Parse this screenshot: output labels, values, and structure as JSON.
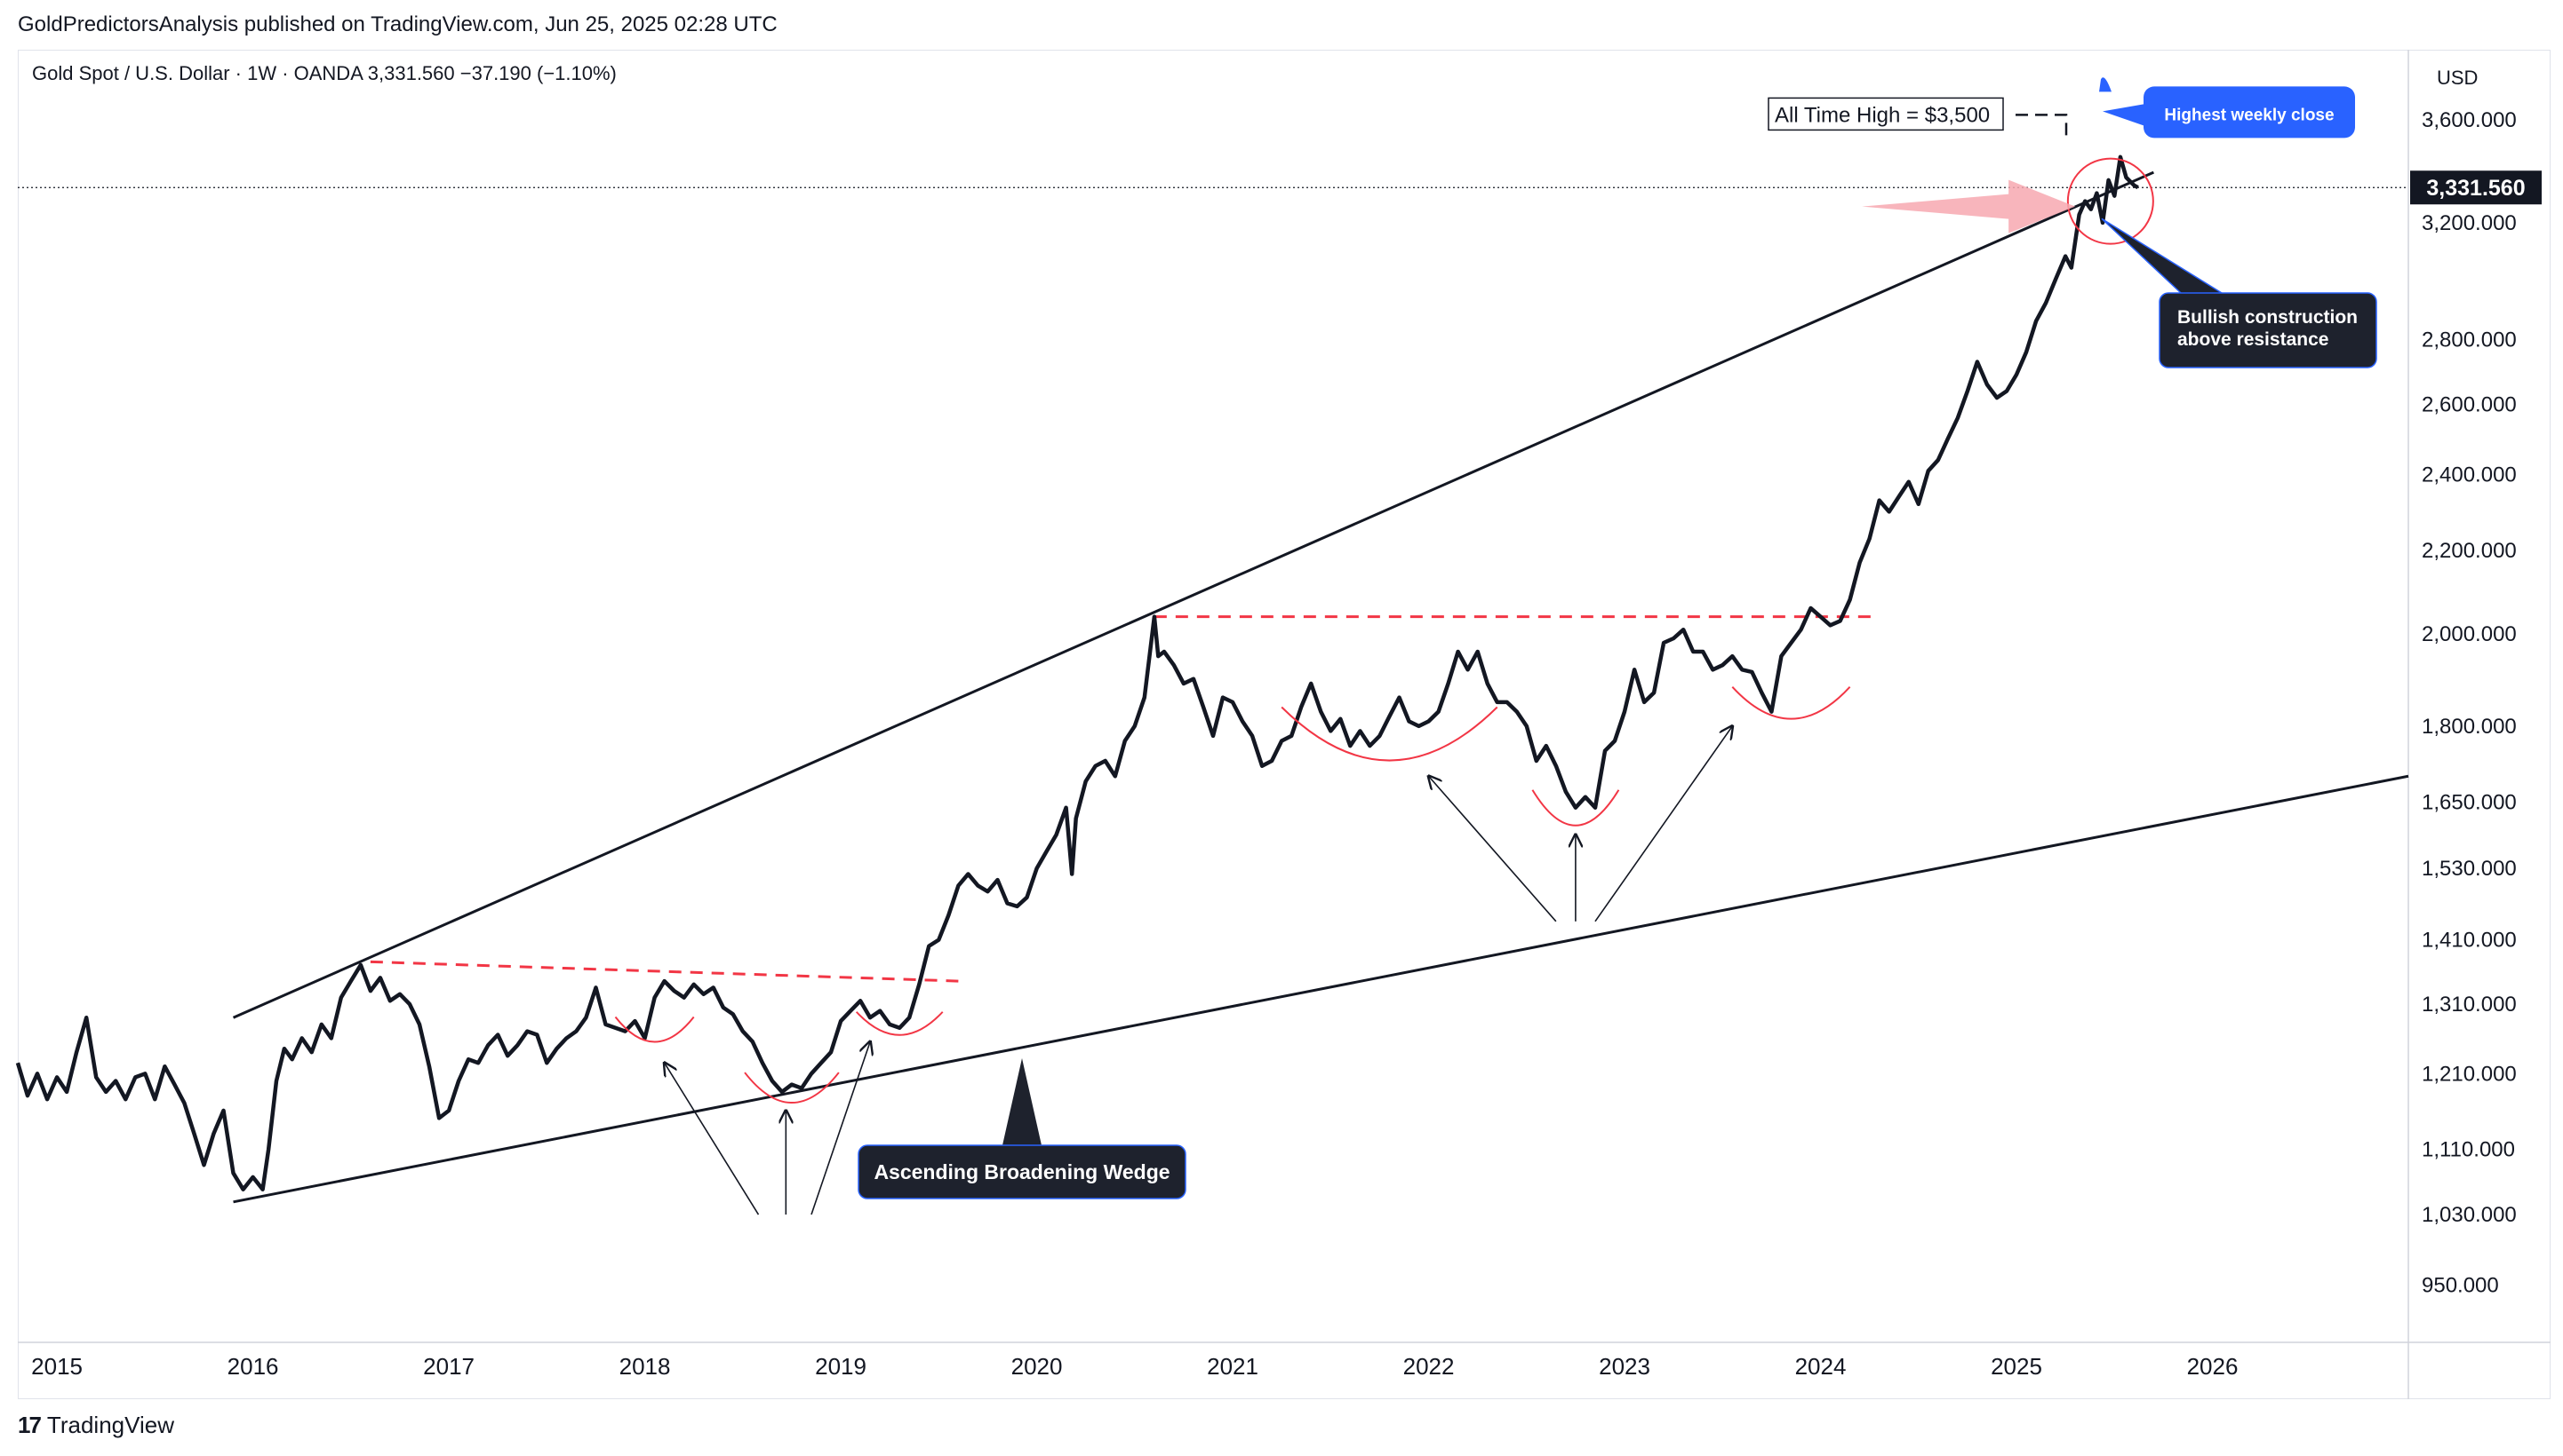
{
  "header": {
    "publish_line": "GoldPredictorsAnalysis published on TradingView.com, Jun 25, 2025 02:28 UTC",
    "symbol_line": "Gold Spot / U.S. Dollar · 1W · OANDA   3,331.560   −37.190 (−1.10%)"
  },
  "footer": {
    "brand": "TradingView",
    "logo_glyph": "17"
  },
  "colors": {
    "price": "#131722",
    "resistance_dash": "#f23645",
    "arc": "#f23645",
    "blue_callout": "#2962ff",
    "dark_callout": "#1e222d",
    "arrow_pink": "#f7a8b0"
  },
  "chart_data": {
    "type": "line",
    "title": "Gold Spot / U.S. Dollar · 1W · OANDA",
    "currency_label": "USD",
    "scale": "log",
    "ylim": [
      890,
      3900
    ],
    "xlim": [
      2014.8,
      2027.0
    ],
    "last_price_label": "3,331.560",
    "last_price": 3331.56,
    "y_ticks": [
      {
        "value": 3600,
        "label": "3,600.000"
      },
      {
        "value": 3200,
        "label": "3,200.000"
      },
      {
        "value": 2800,
        "label": "2,800.000"
      },
      {
        "value": 2600,
        "label": "2,600.000"
      },
      {
        "value": 2400,
        "label": "2,400.000"
      },
      {
        "value": 2200,
        "label": "2,200.000"
      },
      {
        "value": 2000,
        "label": "2,000.000"
      },
      {
        "value": 1800,
        "label": "1,800.000"
      },
      {
        "value": 1650,
        "label": "1,650.000"
      },
      {
        "value": 1530,
        "label": "1,530.000"
      },
      {
        "value": 1410,
        "label": "1,410.000"
      },
      {
        "value": 1310,
        "label": "1,310.000"
      },
      {
        "value": 1210,
        "label": "1,210.000"
      },
      {
        "value": 1110,
        "label": "1,110.000"
      },
      {
        "value": 1030,
        "label": "1,030.000"
      },
      {
        "value": 950,
        "label": "950.000"
      }
    ],
    "x_ticks": [
      {
        "value": 2015,
        "label": "2015"
      },
      {
        "value": 2016,
        "label": "2016"
      },
      {
        "value": 2017,
        "label": "2017"
      },
      {
        "value": 2018,
        "label": "2018"
      },
      {
        "value": 2019,
        "label": "2019"
      },
      {
        "value": 2020,
        "label": "2020"
      },
      {
        "value": 2021,
        "label": "2021"
      },
      {
        "value": 2022,
        "label": "2022"
      },
      {
        "value": 2023,
        "label": "2023"
      },
      {
        "value": 2024,
        "label": "2024"
      },
      {
        "value": 2025,
        "label": "2025"
      },
      {
        "value": 2026,
        "label": "2026"
      }
    ],
    "series": [
      {
        "points": [
          [
            2014.8,
            1225
          ],
          [
            2014.85,
            1180
          ],
          [
            2014.9,
            1210
          ],
          [
            2014.95,
            1175
          ],
          [
            2015.0,
            1205
          ],
          [
            2015.05,
            1185
          ],
          [
            2015.1,
            1240
          ],
          [
            2015.15,
            1290
          ],
          [
            2015.2,
            1205
          ],
          [
            2015.25,
            1185
          ],
          [
            2015.3,
            1200
          ],
          [
            2015.35,
            1175
          ],
          [
            2015.4,
            1205
          ],
          [
            2015.45,
            1210
          ],
          [
            2015.5,
            1175
          ],
          [
            2015.55,
            1220
          ],
          [
            2015.6,
            1195
          ],
          [
            2015.65,
            1170
          ],
          [
            2015.7,
            1130
          ],
          [
            2015.75,
            1090
          ],
          [
            2015.8,
            1130
          ],
          [
            2015.85,
            1160
          ],
          [
            2015.9,
            1080
          ],
          [
            2015.95,
            1060
          ],
          [
            2016.0,
            1075
          ],
          [
            2016.05,
            1060
          ],
          [
            2016.08,
            1110
          ],
          [
            2016.12,
            1200
          ],
          [
            2016.16,
            1245
          ],
          [
            2016.2,
            1230
          ],
          [
            2016.25,
            1260
          ],
          [
            2016.3,
            1240
          ],
          [
            2016.35,
            1280
          ],
          [
            2016.4,
            1260
          ],
          [
            2016.45,
            1320
          ],
          [
            2016.5,
            1345
          ],
          [
            2016.55,
            1370
          ],
          [
            2016.6,
            1330
          ],
          [
            2016.65,
            1350
          ],
          [
            2016.7,
            1315
          ],
          [
            2016.75,
            1325
          ],
          [
            2016.8,
            1310
          ],
          [
            2016.85,
            1280
          ],
          [
            2016.9,
            1220
          ],
          [
            2016.95,
            1150
          ],
          [
            2017.0,
            1160
          ],
          [
            2017.05,
            1200
          ],
          [
            2017.1,
            1230
          ],
          [
            2017.15,
            1225
          ],
          [
            2017.2,
            1250
          ],
          [
            2017.25,
            1265
          ],
          [
            2017.3,
            1235
          ],
          [
            2017.35,
            1250
          ],
          [
            2017.4,
            1270
          ],
          [
            2017.45,
            1265
          ],
          [
            2017.5,
            1225
          ],
          [
            2017.55,
            1245
          ],
          [
            2017.6,
            1260
          ],
          [
            2017.65,
            1270
          ],
          [
            2017.7,
            1290
          ],
          [
            2017.75,
            1335
          ],
          [
            2017.8,
            1280
          ],
          [
            2017.85,
            1275
          ],
          [
            2017.9,
            1270
          ],
          [
            2017.95,
            1285
          ],
          [
            2018.0,
            1260
          ],
          [
            2018.05,
            1320
          ],
          [
            2018.1,
            1345
          ],
          [
            2018.15,
            1330
          ],
          [
            2018.2,
            1320
          ],
          [
            2018.25,
            1340
          ],
          [
            2018.3,
            1325
          ],
          [
            2018.35,
            1335
          ],
          [
            2018.4,
            1305
          ],
          [
            2018.45,
            1295
          ],
          [
            2018.5,
            1270
          ],
          [
            2018.55,
            1255
          ],
          [
            2018.6,
            1225
          ],
          [
            2018.65,
            1200
          ],
          [
            2018.7,
            1185
          ],
          [
            2018.75,
            1195
          ],
          [
            2018.8,
            1190
          ],
          [
            2018.85,
            1210
          ],
          [
            2018.9,
            1225
          ],
          [
            2018.95,
            1240
          ],
          [
            2019.0,
            1285
          ],
          [
            2019.05,
            1300
          ],
          [
            2019.1,
            1315
          ],
          [
            2019.15,
            1290
          ],
          [
            2019.2,
            1300
          ],
          [
            2019.25,
            1280
          ],
          [
            2019.3,
            1275
          ],
          [
            2019.35,
            1290
          ],
          [
            2019.4,
            1340
          ],
          [
            2019.45,
            1400
          ],
          [
            2019.5,
            1410
          ],
          [
            2019.55,
            1450
          ],
          [
            2019.6,
            1500
          ],
          [
            2019.65,
            1520
          ],
          [
            2019.7,
            1500
          ],
          [
            2019.75,
            1490
          ],
          [
            2019.8,
            1510
          ],
          [
            2019.85,
            1470
          ],
          [
            2019.9,
            1465
          ],
          [
            2019.95,
            1480
          ],
          [
            2020.0,
            1530
          ],
          [
            2020.05,
            1560
          ],
          [
            2020.1,
            1590
          ],
          [
            2020.15,
            1640
          ],
          [
            2020.18,
            1520
          ],
          [
            2020.2,
            1620
          ],
          [
            2020.25,
            1690
          ],
          [
            2020.3,
            1720
          ],
          [
            2020.35,
            1730
          ],
          [
            2020.4,
            1700
          ],
          [
            2020.45,
            1770
          ],
          [
            2020.5,
            1800
          ],
          [
            2020.55,
            1860
          ],
          [
            2020.6,
            2040
          ],
          [
            2020.62,
            1950
          ],
          [
            2020.65,
            1960
          ],
          [
            2020.7,
            1930
          ],
          [
            2020.75,
            1890
          ],
          [
            2020.8,
            1900
          ],
          [
            2020.85,
            1840
          ],
          [
            2020.9,
            1780
          ],
          [
            2020.95,
            1860
          ],
          [
            2021.0,
            1850
          ],
          [
            2021.05,
            1810
          ],
          [
            2021.1,
            1780
          ],
          [
            2021.15,
            1720
          ],
          [
            2021.2,
            1730
          ],
          [
            2021.25,
            1770
          ],
          [
            2021.3,
            1780
          ],
          [
            2021.35,
            1840
          ],
          [
            2021.4,
            1890
          ],
          [
            2021.45,
            1830
          ],
          [
            2021.5,
            1790
          ],
          [
            2021.55,
            1815
          ],
          [
            2021.6,
            1760
          ],
          [
            2021.65,
            1790
          ],
          [
            2021.7,
            1760
          ],
          [
            2021.75,
            1780
          ],
          [
            2021.8,
            1820
          ],
          [
            2021.85,
            1860
          ],
          [
            2021.9,
            1810
          ],
          [
            2021.95,
            1800
          ],
          [
            2022.0,
            1810
          ],
          [
            2022.05,
            1830
          ],
          [
            2022.1,
            1890
          ],
          [
            2022.15,
            1960
          ],
          [
            2022.2,
            1920
          ],
          [
            2022.25,
            1960
          ],
          [
            2022.3,
            1890
          ],
          [
            2022.35,
            1850
          ],
          [
            2022.4,
            1850
          ],
          [
            2022.45,
            1830
          ],
          [
            2022.5,
            1800
          ],
          [
            2022.55,
            1730
          ],
          [
            2022.6,
            1760
          ],
          [
            2022.65,
            1720
          ],
          [
            2022.7,
            1670
          ],
          [
            2022.75,
            1640
          ],
          [
            2022.8,
            1660
          ],
          [
            2022.85,
            1640
          ],
          [
            2022.9,
            1750
          ],
          [
            2022.95,
            1770
          ],
          [
            2023.0,
            1830
          ],
          [
            2023.05,
            1920
          ],
          [
            2023.1,
            1850
          ],
          [
            2023.15,
            1870
          ],
          [
            2023.2,
            1980
          ],
          [
            2023.25,
            1990
          ],
          [
            2023.3,
            2010
          ],
          [
            2023.35,
            1960
          ],
          [
            2023.4,
            1960
          ],
          [
            2023.45,
            1920
          ],
          [
            2023.5,
            1930
          ],
          [
            2023.55,
            1950
          ],
          [
            2023.6,
            1920
          ],
          [
            2023.65,
            1915
          ],
          [
            2023.7,
            1870
          ],
          [
            2023.75,
            1830
          ],
          [
            2023.8,
            1950
          ],
          [
            2023.85,
            1980
          ],
          [
            2023.9,
            2010
          ],
          [
            2023.95,
            2060
          ],
          [
            2024.0,
            2040
          ],
          [
            2024.05,
            2020
          ],
          [
            2024.1,
            2030
          ],
          [
            2024.15,
            2080
          ],
          [
            2024.2,
            2170
          ],
          [
            2024.25,
            2230
          ],
          [
            2024.3,
            2330
          ],
          [
            2024.35,
            2300
          ],
          [
            2024.4,
            2340
          ],
          [
            2024.45,
            2380
          ],
          [
            2024.5,
            2320
          ],
          [
            2024.55,
            2410
          ],
          [
            2024.6,
            2440
          ],
          [
            2024.65,
            2500
          ],
          [
            2024.7,
            2560
          ],
          [
            2024.75,
            2640
          ],
          [
            2024.8,
            2730
          ],
          [
            2024.85,
            2660
          ],
          [
            2024.9,
            2620
          ],
          [
            2024.95,
            2640
          ],
          [
            2025.0,
            2690
          ],
          [
            2025.05,
            2760
          ],
          [
            2025.1,
            2860
          ],
          [
            2025.15,
            2920
          ],
          [
            2025.2,
            3000
          ],
          [
            2025.25,
            3080
          ],
          [
            2025.28,
            3040
          ],
          [
            2025.32,
            3230
          ],
          [
            2025.35,
            3280
          ],
          [
            2025.38,
            3250
          ],
          [
            2025.41,
            3310
          ],
          [
            2025.44,
            3200
          ],
          [
            2025.47,
            3360
          ],
          [
            2025.5,
            3300
          ],
          [
            2025.53,
            3450
          ],
          [
            2025.56,
            3370
          ],
          [
            2025.6,
            3340
          ],
          [
            2025.62,
            3331.56
          ]
        ]
      }
    ],
    "annotations": {
      "ath_label": "All Time High = $3,500",
      "highest_weekly_close": "Highest weekly close",
      "bullish_line1": "Bullish construction",
      "bullish_line2": "above resistance",
      "wedge_label": "Ascending Broadening Wedge"
    },
    "trendlines": {
      "upper": [
        [
          2015.9,
          1290
        ],
        [
          2025.7,
          3390
        ]
      ],
      "lower": [
        [
          2015.9,
          1045
        ],
        [
          2027.0,
          1700
        ]
      ],
      "resistance_2018": [
        [
          2016.6,
          1375
        ],
        [
          2019.6,
          1345
        ]
      ],
      "resistance_2021": [
        [
          2020.6,
          2040
        ],
        [
          2024.3,
          2040
        ]
      ]
    }
  }
}
